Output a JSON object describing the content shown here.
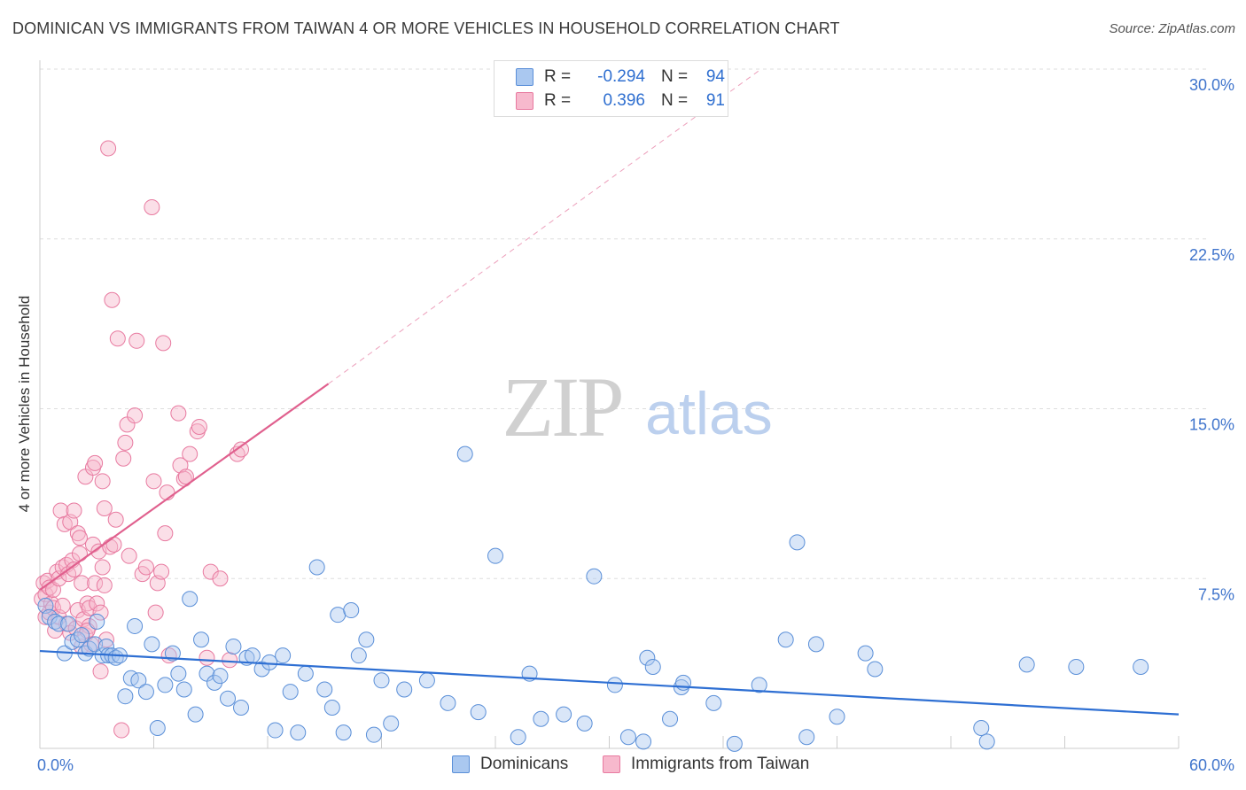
{
  "title": "DOMINICAN VS IMMIGRANTS FROM TAIWAN 4 OR MORE VEHICLES IN HOUSEHOLD CORRELATION CHART",
  "source": "Source: ZipAtlas.com",
  "watermark": {
    "zip": "ZIP",
    "atlas": "atlas"
  },
  "legend_top": {
    "rows": [
      {
        "r_label": "R =",
        "r_value": "-0.294",
        "n_label": "N =",
        "n_value": "94"
      },
      {
        "r_label": "R =",
        "r_value": "0.396",
        "n_label": "N =",
        "n_value": "91"
      }
    ]
  },
  "legend_bottom": {
    "series1": "Dominicans",
    "series2": "Immigrants from Taiwan"
  },
  "colors": {
    "blue_fill": "#aac8f0",
    "blue_stroke": "#5a8fd8",
    "blue_line": "#2e6fd3",
    "pink_fill": "#f7b9cd",
    "pink_stroke": "#e87aa0",
    "pink_line": "#e0608e",
    "grid": "#dddddd",
    "tick_label": "#3f74cc"
  },
  "chart_data": {
    "type": "scatter",
    "title": "DOMINICAN VS IMMIGRANTS FROM TAIWAN 4 OR MORE VEHICLES IN HOUSEHOLD CORRELATION CHART",
    "xlabel": "",
    "ylabel": "4 or more Vehicles in Household",
    "xlim": [
      0,
      60
    ],
    "ylim": [
      0,
      31
    ],
    "x_tick_labels": [
      "0.0%",
      "60.0%"
    ],
    "y_ticks": [
      7.5,
      15.0,
      22.5,
      30.0
    ],
    "y_tick_labels": [
      "7.5%",
      "15.0%",
      "22.5%",
      "30.0%"
    ],
    "grid": true,
    "series": [
      {
        "name": "Dominicans",
        "r": -0.294,
        "n": 94,
        "trend": {
          "x": [
            0,
            60
          ],
          "y": [
            4.3,
            1.5
          ],
          "dashed_extension": false
        },
        "points": [
          [
            0.3,
            6.3
          ],
          [
            0.5,
            5.8
          ],
          [
            0.8,
            5.6
          ],
          [
            1.0,
            5.5
          ],
          [
            1.3,
            4.2
          ],
          [
            1.5,
            5.5
          ],
          [
            1.7,
            4.7
          ],
          [
            2.0,
            4.8
          ],
          [
            2.2,
            5.0
          ],
          [
            2.4,
            4.2
          ],
          [
            2.6,
            4.4
          ],
          [
            2.9,
            4.6
          ],
          [
            3.0,
            5.6
          ],
          [
            3.3,
            4.1
          ],
          [
            3.5,
            4.5
          ],
          [
            3.6,
            4.1
          ],
          [
            3.8,
            4.1
          ],
          [
            4.0,
            4.0
          ],
          [
            4.2,
            4.1
          ],
          [
            4.5,
            2.3
          ],
          [
            4.8,
            3.1
          ],
          [
            5.0,
            5.4
          ],
          [
            5.2,
            3.0
          ],
          [
            5.6,
            2.5
          ],
          [
            5.9,
            4.6
          ],
          [
            6.2,
            0.9
          ],
          [
            6.6,
            2.8
          ],
          [
            7.0,
            4.2
          ],
          [
            7.3,
            3.3
          ],
          [
            7.6,
            2.6
          ],
          [
            7.9,
            6.6
          ],
          [
            8.2,
            1.5
          ],
          [
            8.5,
            4.8
          ],
          [
            8.8,
            3.3
          ],
          [
            9.2,
            2.9
          ],
          [
            9.5,
            3.2
          ],
          [
            9.9,
            2.2
          ],
          [
            10.2,
            4.5
          ],
          [
            10.6,
            1.8
          ],
          [
            10.9,
            4.0
          ],
          [
            11.2,
            4.1
          ],
          [
            11.7,
            3.5
          ],
          [
            12.1,
            3.8
          ],
          [
            12.4,
            0.8
          ],
          [
            12.8,
            4.1
          ],
          [
            13.2,
            2.5
          ],
          [
            13.6,
            0.7
          ],
          [
            14.0,
            3.3
          ],
          [
            14.6,
            8.0
          ],
          [
            15.0,
            2.6
          ],
          [
            15.4,
            1.8
          ],
          [
            15.7,
            5.9
          ],
          [
            16.0,
            0.7
          ],
          [
            16.4,
            6.1
          ],
          [
            16.8,
            4.1
          ],
          [
            17.2,
            4.8
          ],
          [
            17.6,
            0.6
          ],
          [
            18.0,
            3.0
          ],
          [
            18.5,
            1.1
          ],
          [
            19.2,
            2.6
          ],
          [
            20.4,
            3.0
          ],
          [
            21.5,
            2.0
          ],
          [
            22.4,
            13.0
          ],
          [
            23.1,
            1.6
          ],
          [
            24.0,
            8.5
          ],
          [
            25.2,
            0.5
          ],
          [
            25.8,
            3.3
          ],
          [
            26.4,
            1.3
          ],
          [
            27.6,
            1.5
          ],
          [
            28.7,
            1.1
          ],
          [
            29.2,
            7.6
          ],
          [
            30.3,
            2.8
          ],
          [
            31.0,
            0.5
          ],
          [
            31.8,
            0.3
          ],
          [
            32.0,
            4.0
          ],
          [
            32.3,
            3.6
          ],
          [
            33.2,
            1.3
          ],
          [
            33.8,
            2.7
          ],
          [
            33.9,
            2.9
          ],
          [
            35.5,
            2.0
          ],
          [
            36.6,
            0.2
          ],
          [
            37.9,
            2.8
          ],
          [
            39.3,
            4.8
          ],
          [
            39.9,
            9.1
          ],
          [
            40.4,
            0.5
          ],
          [
            40.9,
            4.6
          ],
          [
            42.0,
            1.4
          ],
          [
            43.5,
            4.2
          ],
          [
            44.0,
            3.5
          ],
          [
            49.6,
            0.9
          ],
          [
            49.9,
            0.3
          ],
          [
            52.0,
            3.7
          ],
          [
            54.6,
            3.6
          ],
          [
            58.0,
            3.6
          ]
        ]
      },
      {
        "name": "Immigrants from Taiwan",
        "r": 0.396,
        "n": 91,
        "trend": {
          "x": [
            0,
            15.2
          ],
          "y": [
            7.0,
            16.1
          ],
          "dashed_extension": {
            "x": [
              15.2,
              38.0
            ],
            "y": [
              16.1,
              30.0
            ]
          }
        },
        "points": [
          [
            0.1,
            6.6
          ],
          [
            0.2,
            7.3
          ],
          [
            0.3,
            5.8
          ],
          [
            0.3,
            6.8
          ],
          [
            0.4,
            7.4
          ],
          [
            0.5,
            6.0
          ],
          [
            0.5,
            7.1
          ],
          [
            0.6,
            6.4
          ],
          [
            0.7,
            6.2
          ],
          [
            0.7,
            7.0
          ],
          [
            0.8,
            5.2
          ],
          [
            0.9,
            7.8
          ],
          [
            1.0,
            5.8
          ],
          [
            1.0,
            7.5
          ],
          [
            1.1,
            10.5
          ],
          [
            1.2,
            6.3
          ],
          [
            1.2,
            8.0
          ],
          [
            1.3,
            9.9
          ],
          [
            1.4,
            5.5
          ],
          [
            1.4,
            8.1
          ],
          [
            1.5,
            7.7
          ],
          [
            1.6,
            10.0
          ],
          [
            1.6,
            5.1
          ],
          [
            1.7,
            8.3
          ],
          [
            1.8,
            7.9
          ],
          [
            1.8,
            10.5
          ],
          [
            1.9,
            5.3
          ],
          [
            2.0,
            9.5
          ],
          [
            2.0,
            6.1
          ],
          [
            2.1,
            9.3
          ],
          [
            2.1,
            8.6
          ],
          [
            2.2,
            4.5
          ],
          [
            2.2,
            7.3
          ],
          [
            2.3,
            5.7
          ],
          [
            2.4,
            12.0
          ],
          [
            2.4,
            5.0
          ],
          [
            2.5,
            6.4
          ],
          [
            2.6,
            6.2
          ],
          [
            2.6,
            5.4
          ],
          [
            2.7,
            4.6
          ],
          [
            2.8,
            12.4
          ],
          [
            2.8,
            9.0
          ],
          [
            2.9,
            7.3
          ],
          [
            2.9,
            12.6
          ],
          [
            3.0,
            6.4
          ],
          [
            3.1,
            8.7
          ],
          [
            3.2,
            3.4
          ],
          [
            3.2,
            6.0
          ],
          [
            3.3,
            11.8
          ],
          [
            3.3,
            8.0
          ],
          [
            3.4,
            7.2
          ],
          [
            3.4,
            10.6
          ],
          [
            3.5,
            4.8
          ],
          [
            3.6,
            26.5
          ],
          [
            3.7,
            8.9
          ],
          [
            3.8,
            19.8
          ],
          [
            3.9,
            9.0
          ],
          [
            4.0,
            10.1
          ],
          [
            4.1,
            18.1
          ],
          [
            4.3,
            0.8
          ],
          [
            4.4,
            12.8
          ],
          [
            4.5,
            13.5
          ],
          [
            4.6,
            14.3
          ],
          [
            4.7,
            8.5
          ],
          [
            5.0,
            14.7
          ],
          [
            5.1,
            18.0
          ],
          [
            5.4,
            7.7
          ],
          [
            5.6,
            8.0
          ],
          [
            5.9,
            23.9
          ],
          [
            6.0,
            11.8
          ],
          [
            6.1,
            6.0
          ],
          [
            6.2,
            7.3
          ],
          [
            6.4,
            7.8
          ],
          [
            6.5,
            17.9
          ],
          [
            6.6,
            9.5
          ],
          [
            6.7,
            11.3
          ],
          [
            6.8,
            4.1
          ],
          [
            7.3,
            14.8
          ],
          [
            7.4,
            12.5
          ],
          [
            7.6,
            11.9
          ],
          [
            7.7,
            12.0
          ],
          [
            7.9,
            13.0
          ],
          [
            8.3,
            14.0
          ],
          [
            8.4,
            14.2
          ],
          [
            8.8,
            4.0
          ],
          [
            9.0,
            7.8
          ],
          [
            9.5,
            7.5
          ],
          [
            10.0,
            3.9
          ],
          [
            10.4,
            13.0
          ],
          [
            10.6,
            13.2
          ],
          [
            2.5,
            5.2
          ]
        ]
      }
    ]
  }
}
